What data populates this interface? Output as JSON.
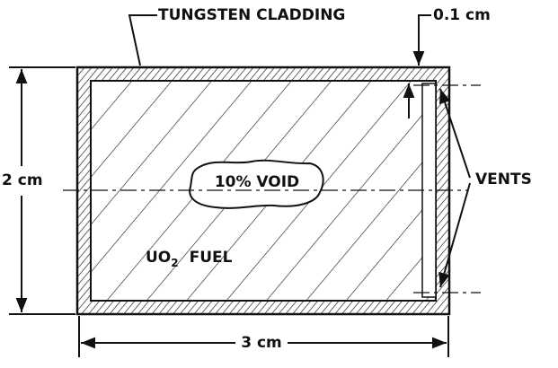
{
  "labels": {
    "cladding": "TUNGSTEN CLADDING",
    "thickness": "0.1 cm",
    "height": "2 cm",
    "void": "10% VOID",
    "vents": "VENTS",
    "fuel": {
      "main": "UO",
      "subscript": "2",
      "rest": "FUEL"
    },
    "width": "3 cm"
  }
}
